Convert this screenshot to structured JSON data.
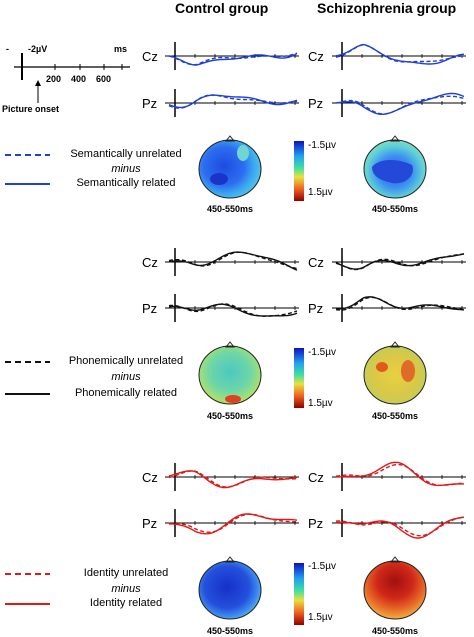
{
  "headers": {
    "control": "Control group",
    "schizo": "Schizophrenia group"
  },
  "scale": {
    "amp": "-2µV",
    "unit": "ms",
    "minus_tick": "-",
    "ticks": [
      "200",
      "400",
      "600"
    ],
    "onset": "Picture onset"
  },
  "electrodes": {
    "cz": "Cz",
    "pz": "Pz"
  },
  "legends": {
    "semantic": {
      "unrelated": "Semantically unrelated",
      "minus": "minus",
      "related": "Semantically related",
      "color": "#1f3fd6"
    },
    "phonemic": {
      "unrelated": "Phonemically unrelated",
      "minus": "minus",
      "related": "Phonemically related",
      "color": "#111111"
    },
    "identity": {
      "unrelated": "Identity unrelated",
      "minus": "minus",
      "related": "Identity related",
      "color": "#e01818"
    }
  },
  "colorbar": {
    "top": "-1.5µv",
    "bottom": "1.5µv"
  },
  "time_window": "450-550ms"
}
